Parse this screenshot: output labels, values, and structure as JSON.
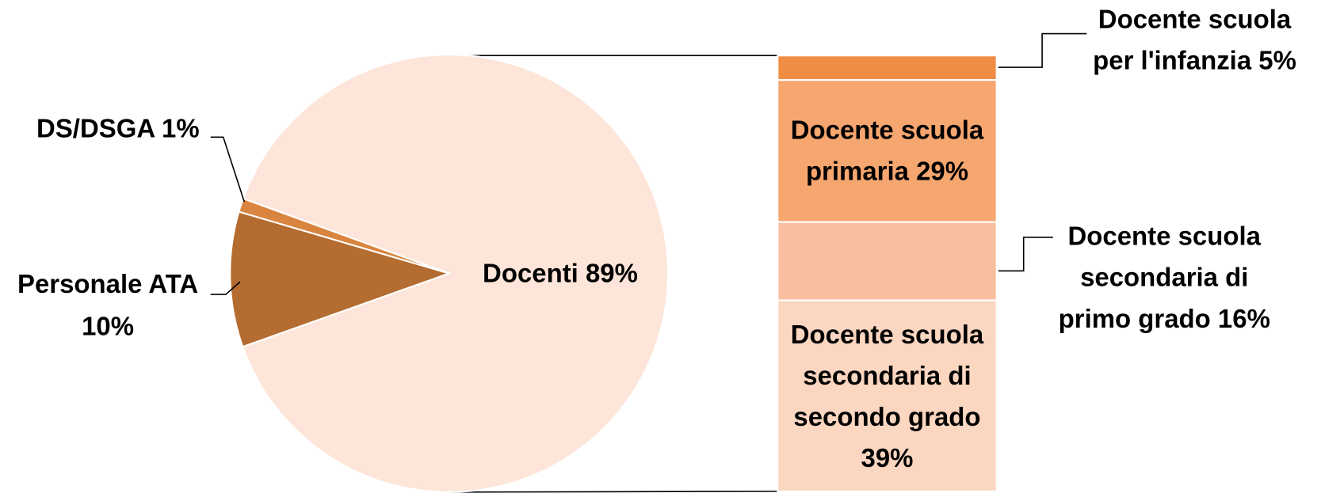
{
  "chart_data": {
    "type": "pie-of-bar",
    "pie": {
      "values": [
        89,
        10,
        1
      ],
      "labels": [
        [
          "Docenti 89%"
        ],
        [
          "Personale ATA",
          "10%"
        ],
        [
          "DS/DSGA 1%"
        ]
      ],
      "colors": [
        "#fde5d9",
        "#b46c30",
        "#d9843f"
      ]
    },
    "bar": {
      "values": [
        5,
        29,
        16,
        39
      ],
      "labels": [
        [
          "Docente scuola",
          "per l'infanzia 5%"
        ],
        [
          "Docente scuola",
          "primaria 29%"
        ],
        [
          "Docente scuola",
          "secondaria di",
          "primo grado 16%"
        ],
        [
          "Docente scuola",
          "secondaria di",
          "secondo grado",
          "39%"
        ]
      ],
      "colors": [
        "#f08d44",
        "#f6a66f",
        "#f9bea0",
        "#fbd6c1"
      ]
    }
  }
}
